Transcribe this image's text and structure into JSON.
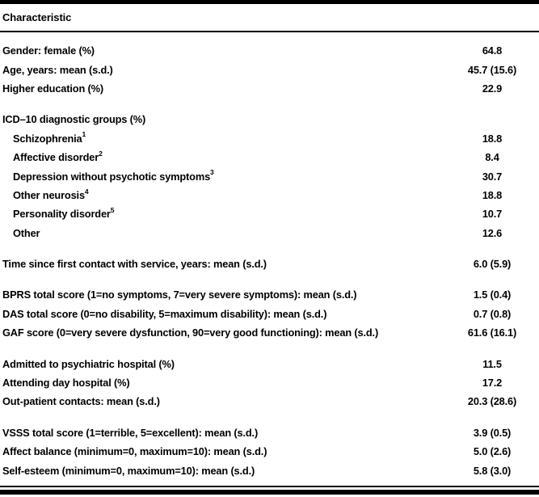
{
  "table": {
    "header": "Characteristic",
    "groups": [
      {
        "rows": [
          {
            "label": "Gender: female (%)",
            "sup": "",
            "value": "64.8"
          },
          {
            "label": "Age, years: mean (s.d.)",
            "sup": "",
            "value": "45.7 (15.6)"
          },
          {
            "label": "Higher education (%)",
            "sup": "",
            "value": "22.9"
          }
        ]
      },
      {
        "rows": [
          {
            "label": "ICD–10 diagnostic groups (%)",
            "sup": "",
            "value": ""
          },
          {
            "label": "Schizophrenia",
            "sup": "1",
            "value": "18.8"
          },
          {
            "label": "Affective disorder",
            "sup": "2",
            "value": "8.4"
          },
          {
            "label": "Depression without psychotic symptoms",
            "sup": "3",
            "value": "30.7"
          },
          {
            "label": "Other neurosis",
            "sup": "4",
            "value": "18.8"
          },
          {
            "label": "Personality disorder",
            "sup": "5",
            "value": "10.7"
          },
          {
            "label": "Other",
            "sup": "",
            "value": "12.6"
          }
        ]
      },
      {
        "rows": [
          {
            "label": "Time since first contact with service, years: mean (s.d.)",
            "sup": "",
            "value": "6.0 (5.9)"
          }
        ]
      },
      {
        "rows": [
          {
            "label": "BPRS total score (1=no symptoms, 7=very severe symptoms): mean (s.d.)",
            "sup": "",
            "value": "1.5 (0.4)"
          },
          {
            "label": "DAS total score (0=no disability, 5=maximum disability): mean (s.d.)",
            "sup": "",
            "value": "0.7 (0.8)"
          },
          {
            "label": "GAF score (0=very severe dysfunction, 90=very good functioning): mean (s.d.)",
            "sup": "",
            "value": "61.6 (16.1)"
          }
        ]
      },
      {
        "rows": [
          {
            "label": "Admitted to psychiatric hospital (%)",
            "sup": "",
            "value": "11.5"
          },
          {
            "label": "Attending day hospital (%)",
            "sup": "",
            "value": "17.2"
          },
          {
            "label": "Out-patient contacts: mean (s.d.)",
            "sup": "",
            "value": "20.3 (28.6)"
          }
        ]
      },
      {
        "rows": [
          {
            "label": "VSSS total score (1=terrible, 5=excellent): mean (s.d.)",
            "sup": "",
            "value": "3.9 (0.5)"
          },
          {
            "label": "Affect balance (minimum=0, maximum=10): mean (s.d.)",
            "sup": "",
            "value": "5.0 (2.6)"
          },
          {
            "label": "Self-esteem (minimum=0, maximum=10): mean (s.d.)",
            "sup": "",
            "value": "5.8 (3.0)"
          }
        ]
      }
    ]
  }
}
